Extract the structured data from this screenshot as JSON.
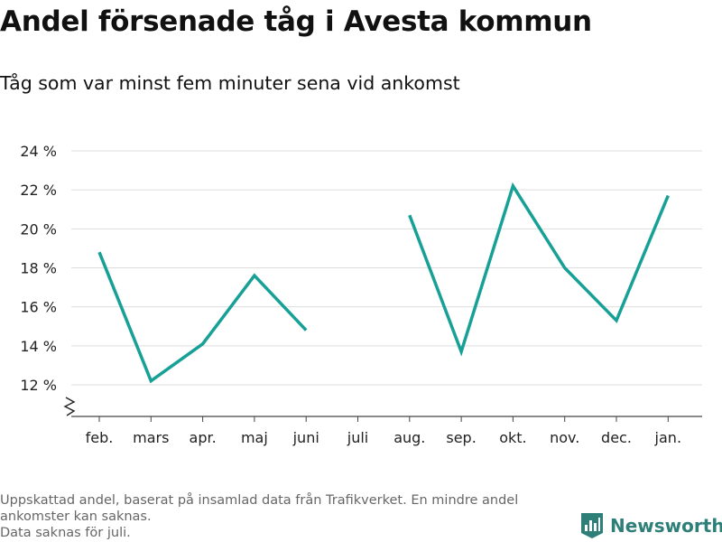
{
  "title": "Andel försenade tåg i Avesta kommun",
  "subtitle": "Tåg som var minst fem minuter sena vid ankomst",
  "footnote": {
    "line1": "Uppskattad andel, baserat på insamlad data från Trafikverket. En mindre andel ankomster kan saknas.",
    "line2": "Data saknas för juli."
  },
  "brand": {
    "name": "Newsworthy",
    "icon": "bar-chart-logo-icon",
    "color": "#2e7f78"
  },
  "colors": {
    "line": "#16a096",
    "grid": "#dddddd",
    "axis": "#444444"
  },
  "chart_data": {
    "type": "line",
    "categories": [
      "feb.",
      "mars",
      "apr.",
      "maj",
      "juni",
      "juli",
      "aug.",
      "sep.",
      "okt.",
      "nov.",
      "dec.",
      "jan."
    ],
    "series": [
      {
        "values": [
          18.8,
          12.2,
          14.1,
          17.6,
          14.8,
          null,
          20.7,
          13.7,
          22.2,
          18.0,
          15.3,
          21.7
        ]
      }
    ],
    "yticks": [
      12,
      14,
      16,
      18,
      20,
      22,
      24
    ],
    "ytick_labels": [
      "12 %",
      "14 %",
      "16 %",
      "18 %",
      "20 %",
      "22 %",
      "24 %"
    ],
    "ylim": [
      10.5,
      24
    ],
    "y_axis_break": true,
    "grid": "horizontal",
    "legend": "none",
    "xlabel": "",
    "ylabel": ""
  }
}
